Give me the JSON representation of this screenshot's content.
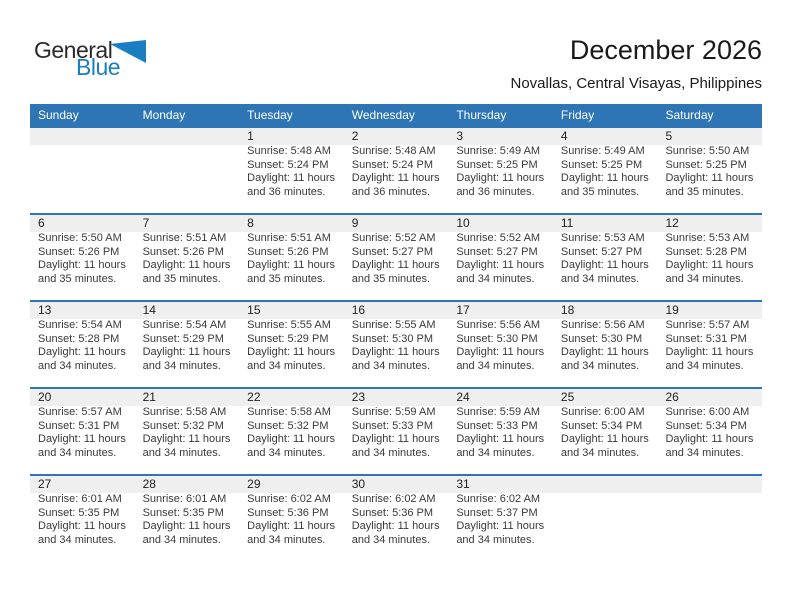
{
  "logo": {
    "general": "General",
    "blue": "Blue"
  },
  "header": {
    "title": "December 2026",
    "subtitle": "Novallas, Central Visayas, Philippines"
  },
  "colors": {
    "header_blue": "#2e75b5",
    "grid_line_blue": "#2e75b5",
    "day_band_gray": "#efefef",
    "logo_blue": "#1b7ec3"
  },
  "weekdays": [
    "Sunday",
    "Monday",
    "Tuesday",
    "Wednesday",
    "Thursday",
    "Friday",
    "Saturday"
  ],
  "weeks": [
    [
      null,
      null,
      {
        "day": "1",
        "sunrise": "Sunrise: 5:48 AM",
        "sunset": "Sunset: 5:24 PM",
        "daylight": [
          "Daylight: 11 hours",
          "and 36 minutes."
        ]
      },
      {
        "day": "2",
        "sunrise": "Sunrise: 5:48 AM",
        "sunset": "Sunset: 5:24 PM",
        "daylight": [
          "Daylight: 11 hours",
          "and 36 minutes."
        ]
      },
      {
        "day": "3",
        "sunrise": "Sunrise: 5:49 AM",
        "sunset": "Sunset: 5:25 PM",
        "daylight": [
          "Daylight: 11 hours",
          "and 36 minutes."
        ]
      },
      {
        "day": "4",
        "sunrise": "Sunrise: 5:49 AM",
        "sunset": "Sunset: 5:25 PM",
        "daylight": [
          "Daylight: 11 hours",
          "and 35 minutes."
        ]
      },
      {
        "day": "5",
        "sunrise": "Sunrise: 5:50 AM",
        "sunset": "Sunset: 5:25 PM",
        "daylight": [
          "Daylight: 11 hours",
          "and 35 minutes."
        ]
      }
    ],
    [
      {
        "day": "6",
        "sunrise": "Sunrise: 5:50 AM",
        "sunset": "Sunset: 5:26 PM",
        "daylight": [
          "Daylight: 11 hours",
          "and 35 minutes."
        ]
      },
      {
        "day": "7",
        "sunrise": "Sunrise: 5:51 AM",
        "sunset": "Sunset: 5:26 PM",
        "daylight": [
          "Daylight: 11 hours",
          "and 35 minutes."
        ]
      },
      {
        "day": "8",
        "sunrise": "Sunrise: 5:51 AM",
        "sunset": "Sunset: 5:26 PM",
        "daylight": [
          "Daylight: 11 hours",
          "and 35 minutes."
        ]
      },
      {
        "day": "9",
        "sunrise": "Sunrise: 5:52 AM",
        "sunset": "Sunset: 5:27 PM",
        "daylight": [
          "Daylight: 11 hours",
          "and 35 minutes."
        ]
      },
      {
        "day": "10",
        "sunrise": "Sunrise: 5:52 AM",
        "sunset": "Sunset: 5:27 PM",
        "daylight": [
          "Daylight: 11 hours",
          "and 34 minutes."
        ]
      },
      {
        "day": "11",
        "sunrise": "Sunrise: 5:53 AM",
        "sunset": "Sunset: 5:27 PM",
        "daylight": [
          "Daylight: 11 hours",
          "and 34 minutes."
        ]
      },
      {
        "day": "12",
        "sunrise": "Sunrise: 5:53 AM",
        "sunset": "Sunset: 5:28 PM",
        "daylight": [
          "Daylight: 11 hours",
          "and 34 minutes."
        ]
      }
    ],
    [
      {
        "day": "13",
        "sunrise": "Sunrise: 5:54 AM",
        "sunset": "Sunset: 5:28 PM",
        "daylight": [
          "Daylight: 11 hours",
          "and 34 minutes."
        ]
      },
      {
        "day": "14",
        "sunrise": "Sunrise: 5:54 AM",
        "sunset": "Sunset: 5:29 PM",
        "daylight": [
          "Daylight: 11 hours",
          "and 34 minutes."
        ]
      },
      {
        "day": "15",
        "sunrise": "Sunrise: 5:55 AM",
        "sunset": "Sunset: 5:29 PM",
        "daylight": [
          "Daylight: 11 hours",
          "and 34 minutes."
        ]
      },
      {
        "day": "16",
        "sunrise": "Sunrise: 5:55 AM",
        "sunset": "Sunset: 5:30 PM",
        "daylight": [
          "Daylight: 11 hours",
          "and 34 minutes."
        ]
      },
      {
        "day": "17",
        "sunrise": "Sunrise: 5:56 AM",
        "sunset": "Sunset: 5:30 PM",
        "daylight": [
          "Daylight: 11 hours",
          "and 34 minutes."
        ]
      },
      {
        "day": "18",
        "sunrise": "Sunrise: 5:56 AM",
        "sunset": "Sunset: 5:30 PM",
        "daylight": [
          "Daylight: 11 hours",
          "and 34 minutes."
        ]
      },
      {
        "day": "19",
        "sunrise": "Sunrise: 5:57 AM",
        "sunset": "Sunset: 5:31 PM",
        "daylight": [
          "Daylight: 11 hours",
          "and 34 minutes."
        ]
      }
    ],
    [
      {
        "day": "20",
        "sunrise": "Sunrise: 5:57 AM",
        "sunset": "Sunset: 5:31 PM",
        "daylight": [
          "Daylight: 11 hours",
          "and 34 minutes."
        ]
      },
      {
        "day": "21",
        "sunrise": "Sunrise: 5:58 AM",
        "sunset": "Sunset: 5:32 PM",
        "daylight": [
          "Daylight: 11 hours",
          "and 34 minutes."
        ]
      },
      {
        "day": "22",
        "sunrise": "Sunrise: 5:58 AM",
        "sunset": "Sunset: 5:32 PM",
        "daylight": [
          "Daylight: 11 hours",
          "and 34 minutes."
        ]
      },
      {
        "day": "23",
        "sunrise": "Sunrise: 5:59 AM",
        "sunset": "Sunset: 5:33 PM",
        "daylight": [
          "Daylight: 11 hours",
          "and 34 minutes."
        ]
      },
      {
        "day": "24",
        "sunrise": "Sunrise: 5:59 AM",
        "sunset": "Sunset: 5:33 PM",
        "daylight": [
          "Daylight: 11 hours",
          "and 34 minutes."
        ]
      },
      {
        "day": "25",
        "sunrise": "Sunrise: 6:00 AM",
        "sunset": "Sunset: 5:34 PM",
        "daylight": [
          "Daylight: 11 hours",
          "and 34 minutes."
        ]
      },
      {
        "day": "26",
        "sunrise": "Sunrise: 6:00 AM",
        "sunset": "Sunset: 5:34 PM",
        "daylight": [
          "Daylight: 11 hours",
          "and 34 minutes."
        ]
      }
    ],
    [
      {
        "day": "27",
        "sunrise": "Sunrise: 6:01 AM",
        "sunset": "Sunset: 5:35 PM",
        "daylight": [
          "Daylight: 11 hours",
          "and 34 minutes."
        ]
      },
      {
        "day": "28",
        "sunrise": "Sunrise: 6:01 AM",
        "sunset": "Sunset: 5:35 PM",
        "daylight": [
          "Daylight: 11 hours",
          "and 34 minutes."
        ]
      },
      {
        "day": "29",
        "sunrise": "Sunrise: 6:02 AM",
        "sunset": "Sunset: 5:36 PM",
        "daylight": [
          "Daylight: 11 hours",
          "and 34 minutes."
        ]
      },
      {
        "day": "30",
        "sunrise": "Sunrise: 6:02 AM",
        "sunset": "Sunset: 5:36 PM",
        "daylight": [
          "Daylight: 11 hours",
          "and 34 minutes."
        ]
      },
      {
        "day": "31",
        "sunrise": "Sunrise: 6:02 AM",
        "sunset": "Sunset: 5:37 PM",
        "daylight": [
          "Daylight: 11 hours",
          "and 34 minutes."
        ]
      },
      null,
      null
    ]
  ]
}
